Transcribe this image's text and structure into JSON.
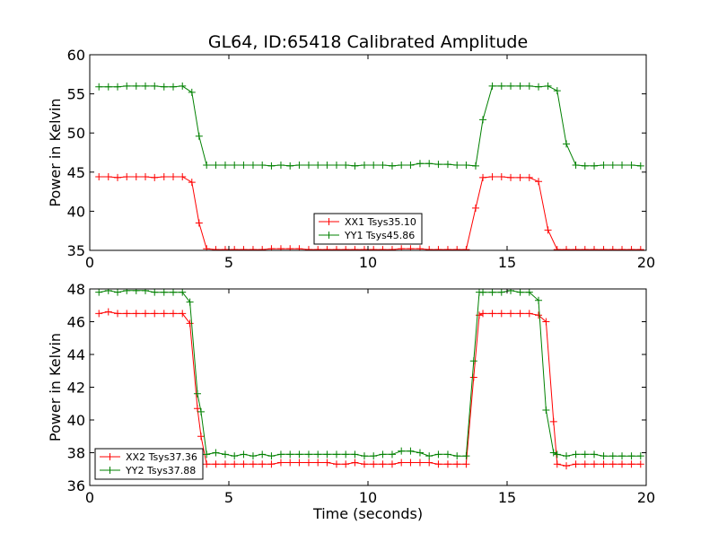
{
  "figure": {
    "title": "GL64, ID:65418 Calibrated Amplitude",
    "xlabel": "Time (seconds)"
  },
  "chart_data": [
    {
      "type": "line",
      "ylabel": "Power in Kelvin",
      "xlim": [
        0,
        20
      ],
      "ylim": [
        35,
        60
      ],
      "x_ticks": [
        0,
        5,
        10,
        15,
        20
      ],
      "y_ticks": [
        35,
        40,
        45,
        50,
        55,
        60
      ],
      "legend_position": "lower center",
      "x": [
        0.33,
        0.67,
        1.0,
        1.33,
        1.67,
        2.0,
        2.33,
        2.67,
        3.0,
        3.33,
        3.67,
        3.93,
        4.2,
        4.53,
        4.87,
        5.2,
        5.53,
        5.87,
        6.2,
        6.53,
        6.87,
        7.2,
        7.53,
        7.87,
        8.2,
        8.53,
        8.87,
        9.2,
        9.53,
        9.87,
        10.2,
        10.53,
        10.87,
        11.2,
        11.53,
        11.87,
        12.2,
        12.53,
        12.87,
        13.2,
        13.53,
        13.87,
        14.13,
        14.47,
        14.8,
        15.13,
        15.47,
        15.8,
        16.13,
        16.47,
        16.8,
        17.13,
        17.47,
        17.8,
        18.13,
        18.47,
        18.8,
        19.13,
        19.47,
        19.8
      ],
      "series": [
        {
          "name": "XX1 Tsys35.10",
          "color": "#ff0000",
          "values": [
            44.4,
            44.4,
            44.3,
            44.4,
            44.4,
            44.4,
            44.3,
            44.4,
            44.4,
            44.4,
            43.7,
            38.5,
            35.2,
            35.1,
            35.1,
            35.1,
            35.1,
            35.1,
            35.1,
            35.2,
            35.2,
            35.2,
            35.2,
            35.1,
            35.1,
            35.1,
            35.1,
            35.1,
            35.1,
            35.1,
            35.1,
            35.1,
            35.1,
            35.2,
            35.2,
            35.2,
            35.1,
            35.1,
            35.1,
            35.1,
            35.1,
            40.4,
            44.3,
            44.4,
            44.4,
            44.3,
            44.3,
            44.3,
            43.8,
            37.6,
            35.1,
            35.1,
            35.1,
            35.1,
            35.1,
            35.1,
            35.1,
            35.1,
            35.1,
            35.1
          ]
        },
        {
          "name": "YY1 Tsys45.86",
          "color": "#008000",
          "values": [
            55.9,
            55.9,
            55.9,
            56.0,
            56.0,
            56.0,
            56.0,
            55.9,
            55.9,
            56.0,
            55.2,
            49.6,
            45.9,
            45.9,
            45.9,
            45.9,
            45.9,
            45.9,
            45.9,
            45.8,
            45.9,
            45.8,
            45.9,
            45.9,
            45.9,
            45.9,
            45.9,
            45.9,
            45.8,
            45.9,
            45.9,
            45.9,
            45.8,
            45.9,
            45.9,
            46.1,
            46.1,
            46.0,
            46.0,
            45.9,
            45.9,
            45.8,
            51.7,
            56.0,
            56.0,
            56.0,
            56.0,
            56.0,
            55.9,
            56.0,
            55.4,
            48.6,
            45.9,
            45.8,
            45.8,
            45.9,
            45.9,
            45.9,
            45.9,
            45.8
          ]
        }
      ]
    },
    {
      "type": "line",
      "ylabel": "Power in Kelvin",
      "xlim": [
        0,
        20
      ],
      "ylim": [
        36,
        48
      ],
      "x_ticks": [
        0,
        5,
        10,
        15,
        20
      ],
      "y_ticks": [
        36,
        38,
        40,
        42,
        44,
        46,
        48
      ],
      "legend_position": "lower left",
      "x": [
        0.33,
        0.67,
        1.0,
        1.33,
        1.67,
        2.0,
        2.33,
        2.67,
        3.0,
        3.33,
        3.6,
        3.87,
        4.0,
        4.2,
        4.53,
        4.87,
        5.2,
        5.53,
        5.87,
        6.2,
        6.53,
        6.87,
        7.2,
        7.53,
        7.87,
        8.2,
        8.53,
        8.87,
        9.2,
        9.53,
        9.87,
        10.2,
        10.53,
        10.87,
        11.2,
        11.53,
        11.87,
        12.2,
        12.53,
        12.87,
        13.2,
        13.53,
        13.8,
        14.0,
        14.13,
        14.47,
        14.8,
        15.13,
        15.47,
        15.8,
        16.13,
        16.4,
        16.67,
        16.8,
        17.13,
        17.47,
        17.8,
        18.13,
        18.47,
        18.8,
        19.13,
        19.47,
        19.8
      ],
      "series": [
        {
          "name": "XX2 Tsys37.36",
          "color": "#ff0000",
          "values": [
            46.5,
            46.6,
            46.5,
            46.5,
            46.5,
            46.5,
            46.5,
            46.5,
            46.5,
            46.5,
            45.9,
            40.7,
            39.0,
            37.3,
            37.3,
            37.3,
            37.3,
            37.3,
            37.3,
            37.3,
            37.3,
            37.4,
            37.4,
            37.4,
            37.4,
            37.4,
            37.4,
            37.3,
            37.3,
            37.4,
            37.3,
            37.3,
            37.3,
            37.3,
            37.4,
            37.4,
            37.4,
            37.4,
            37.3,
            37.3,
            37.3,
            37.3,
            42.6,
            46.4,
            46.5,
            46.5,
            46.5,
            46.5,
            46.5,
            46.5,
            46.4,
            46.0,
            39.9,
            37.3,
            37.2,
            37.3,
            37.3,
            37.3,
            37.3,
            37.3,
            37.3,
            37.3,
            37.3
          ]
        },
        {
          "name": "YY2 Tsys37.88",
          "color": "#008000",
          "values": [
            47.8,
            47.9,
            47.8,
            47.9,
            47.9,
            47.9,
            47.8,
            47.8,
            47.8,
            47.8,
            47.2,
            41.6,
            40.5,
            37.9,
            38.0,
            37.9,
            37.8,
            37.9,
            37.8,
            37.9,
            37.8,
            37.9,
            37.9,
            37.9,
            37.9,
            37.9,
            37.9,
            37.9,
            37.9,
            37.9,
            37.8,
            37.8,
            37.9,
            37.9,
            38.1,
            38.1,
            38.0,
            37.8,
            37.9,
            37.9,
            37.8,
            37.8,
            43.6,
            47.8,
            47.8,
            47.8,
            47.8,
            47.9,
            47.8,
            47.8,
            47.3,
            40.6,
            38.0,
            37.9,
            37.8,
            37.9,
            37.9,
            37.9,
            37.8,
            37.8,
            37.8,
            37.8,
            37.8
          ]
        }
      ]
    }
  ]
}
